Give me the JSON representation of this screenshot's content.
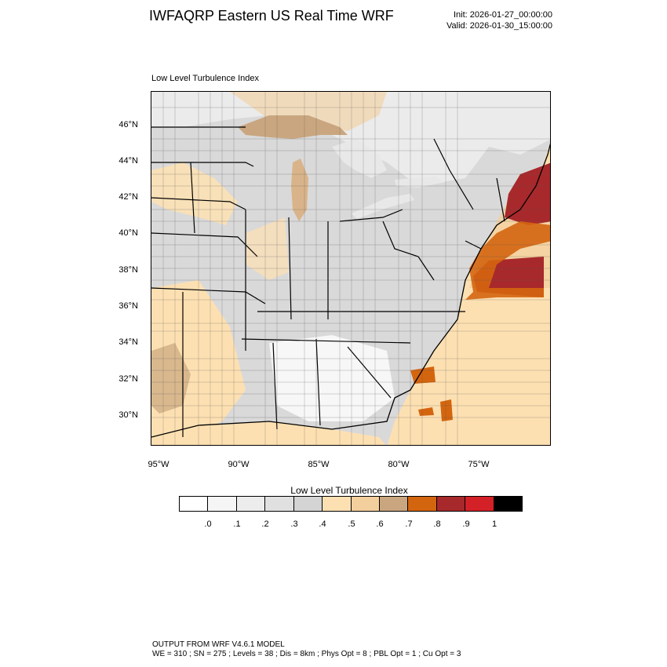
{
  "header": {
    "title": "IWFAQRP Eastern US Real Time WRF",
    "init": "Init: 2026-01-27_00:00:00",
    "valid": "Valid: 2026-01-30_15:00:00"
  },
  "plot": {
    "label": "Low Level Turbulence Index"
  },
  "map": {
    "lat_labels": [
      "46°N",
      "44°N",
      "42°N",
      "40°N",
      "38°N",
      "36°N",
      "34°N",
      "32°N",
      "30°N"
    ],
    "lon_labels": [
      "95°W",
      "90°W",
      "85°W",
      "80°W",
      "75°W"
    ],
    "colors": {
      "land_gray": "#d9d9d9",
      "land_light": "#ebebeb",
      "land_white": "#f7f7f7",
      "peach": "#fde0b2",
      "tan": "#f3cf9d",
      "brown": "#c9a67f",
      "orange": "#d4650f",
      "darkred": "#a8292b",
      "water": "#e8e8e8"
    }
  },
  "colorbar": {
    "title": "Low Level Turbulence Index",
    "colors": [
      "#ffffff",
      "#f5f5f5",
      "#ececec",
      "#e0e0e0",
      "#d4d4d4",
      "#fde0b2",
      "#f3cf9d",
      "#c9a67f",
      "#d4650f",
      "#a8292b",
      "#d42027",
      "#000000"
    ],
    "ticks": [
      ".0",
      ".1",
      ".2",
      ".3",
      ".4",
      ".5",
      ".6",
      ".7",
      ".8",
      ".9",
      "1"
    ]
  },
  "footer": {
    "line1": "OUTPUT FROM WRF V4.6.1 MODEL",
    "line2": "WE = 310 ; SN = 275 ; Levels = 38 ; Dis = 8km ; Phys Opt = 8 ; PBL Opt = 1 ; Cu Opt = 3"
  }
}
